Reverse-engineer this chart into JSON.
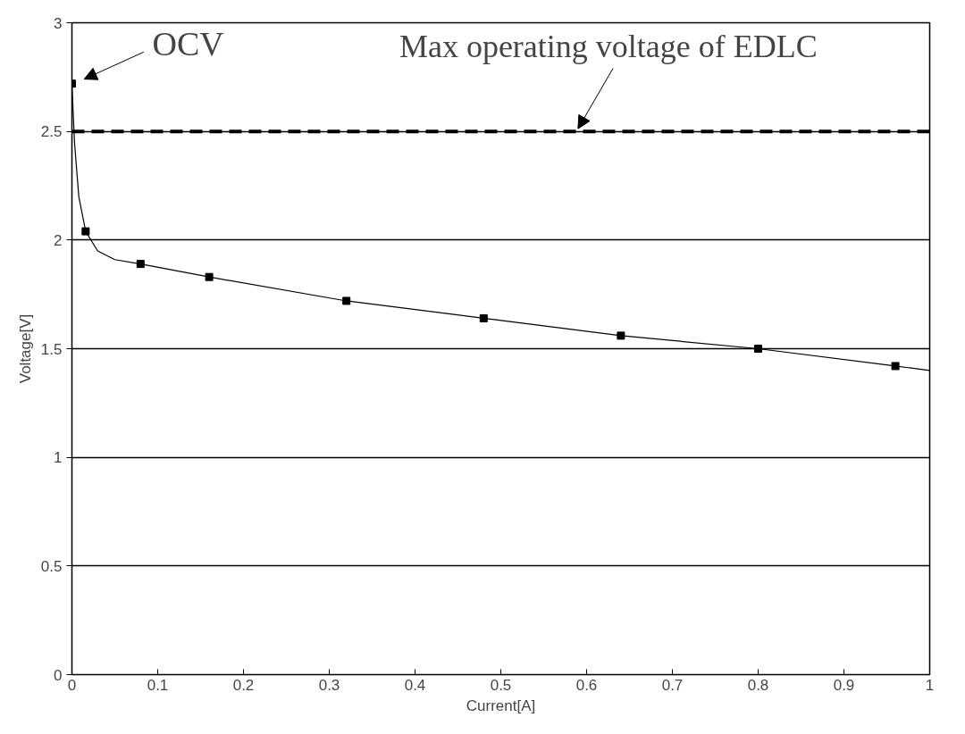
{
  "chart_data": {
    "type": "scatter",
    "xlabel": "Current[A]",
    "ylabel": "Voltage[V]",
    "xlim": [
      0,
      1
    ],
    "ylim": [
      0,
      3
    ],
    "xticks": [
      0,
      0.1,
      0.2,
      0.3,
      0.4,
      0.5,
      0.6,
      0.7,
      0.8,
      0.9,
      1
    ],
    "yticks": [
      0,
      0.5,
      1,
      1.5,
      2,
      2.5,
      3
    ],
    "grid": "y",
    "series": [
      {
        "marker": "square",
        "color": "#000000",
        "x": [
          0,
          0.016,
          0.08,
          0.16,
          0.32,
          0.48,
          0.64,
          0.8,
          0.96
        ],
        "values": [
          2.72,
          2.04,
          1.89,
          1.83,
          1.72,
          1.64,
          1.56,
          1.5,
          1.42
        ]
      },
      {
        "type": "line",
        "marker": "none",
        "line_style": "solid",
        "color": "#000000",
        "x": [
          0,
          0.003,
          0.008,
          0.016,
          0.03,
          0.05,
          0.08,
          0.16,
          0.32,
          0.48,
          0.64,
          0.8,
          0.96,
          1.0
        ],
        "values": [
          2.72,
          2.45,
          2.2,
          2.04,
          1.95,
          1.91,
          1.89,
          1.83,
          1.72,
          1.64,
          1.56,
          1.5,
          1.42,
          1.4
        ]
      }
    ],
    "ref_lines": [
      {
        "axis": "y",
        "value": 2.5,
        "color": "#000000",
        "line_style": "dashed"
      }
    ],
    "annotations": [
      {
        "text": "OCV",
        "x": 0,
        "y": 2.72
      },
      {
        "text": "Max operating voltage of EDLC",
        "x": 0.59,
        "y": 2.5
      }
    ]
  }
}
